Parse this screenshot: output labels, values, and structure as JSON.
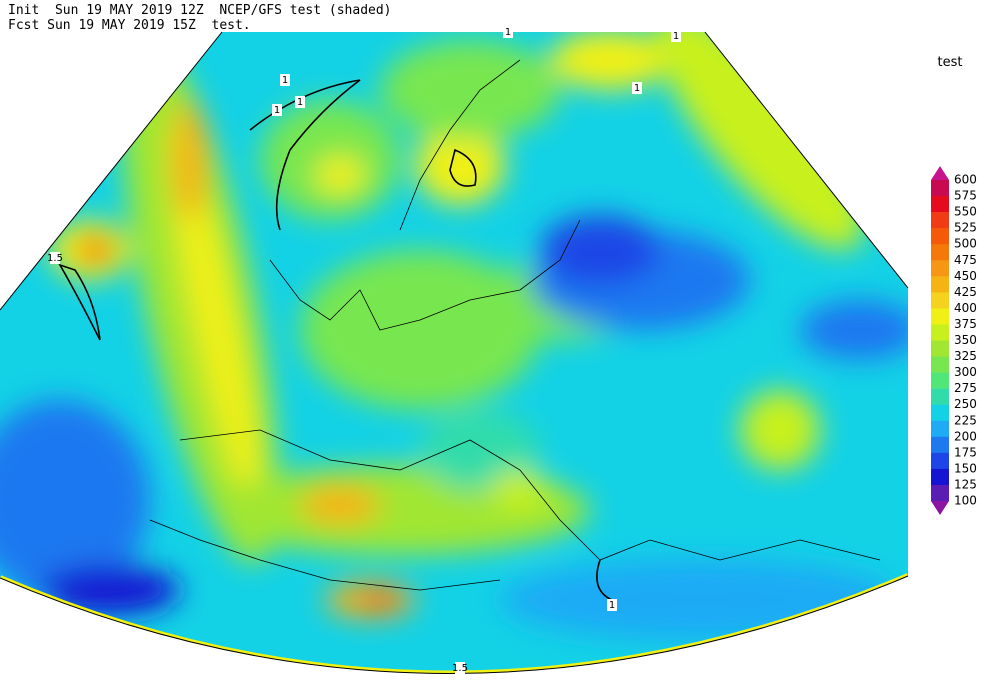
{
  "header": {
    "line1": "Init  Sun 19 MAY 2019 12Z  NCEP/GFS test (shaded)",
    "line2": "Fcst Sun 19 MAY 2019 15Z  test."
  },
  "legend": {
    "title": "test",
    "levels": [
      600,
      575,
      550,
      525,
      500,
      475,
      450,
      425,
      400,
      375,
      350,
      325,
      300,
      275,
      250,
      225,
      200,
      175,
      150,
      125,
      100
    ],
    "colors": [
      "#c8148c",
      "#c80a50",
      "#e60a1e",
      "#f03c14",
      "#f55a0a",
      "#f5780a",
      "#f59614",
      "#f5b414",
      "#f5d21e",
      "#f0f014",
      "#c8f01e",
      "#a0e632",
      "#78e650",
      "#50e678",
      "#32dcaa",
      "#14d2e6",
      "#1eaaf5",
      "#1e78f0",
      "#1e46e6",
      "#1414d2",
      "#5a1eb4",
      "#8c14a0"
    ]
  },
  "contour_labels": [
    "1",
    "1",
    "1",
    "1",
    "1",
    "1.5",
    "1",
    "1",
    "1.5"
  ]
}
